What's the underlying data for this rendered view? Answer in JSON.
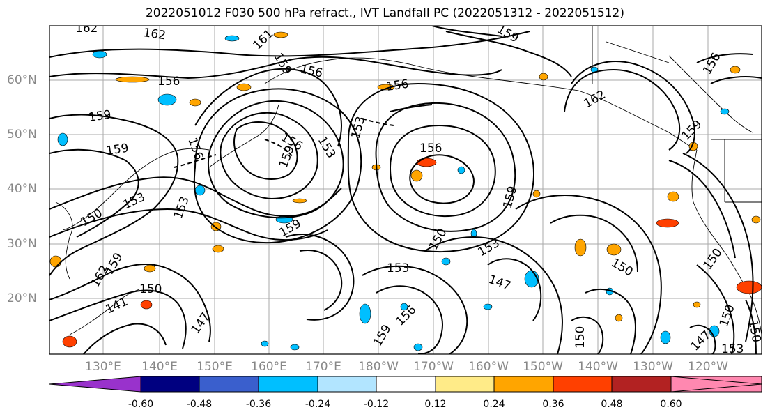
{
  "title": "2022051012 F030 500 hPa refract., IVT Landfall PC (2022051312 - 2022051512)",
  "map": {
    "lat_labels": [
      "60°N",
      "50°N",
      "40°N",
      "30°N",
      "20°N"
    ],
    "lon_labels": [
      "130°E",
      "140°E",
      "150°E",
      "160°E",
      "170°E",
      "180°W",
      "170°W",
      "160°W",
      "150°W",
      "140°W",
      "130°W",
      "120°W"
    ],
    "contour_labels": [
      "162",
      "162",
      "161",
      "159",
      "156",
      "156",
      "156",
      "159",
      "159",
      "159",
      "156",
      "153",
      "153",
      "156",
      "156",
      "159",
      "150",
      "153",
      "159",
      "153",
      "150",
      "153",
      "147",
      "150",
      "156",
      "159",
      "147",
      "162",
      "159",
      "159",
      "150",
      "150",
      "153",
      "150",
      "147",
      "153",
      "150",
      "159",
      "162",
      "150",
      "141",
      "156"
    ],
    "line_color": "#000000",
    "grid_color": "#aaaaaa"
  },
  "colorbar": {
    "colors": [
      "#9932cc",
      "#000080",
      "#3a5fcd",
      "#00bfff",
      "#b2e5ff",
      "#ffffff",
      "#ffeb88",
      "#ffa500",
      "#ff4000",
      "#b22222",
      "#ff88b0",
      "#ff88b0"
    ],
    "tick_labels": [
      "-0.60",
      "-0.48",
      "-0.36",
      "-0.24",
      "-0.12",
      "0.12",
      "0.24",
      "0.36",
      "0.48",
      "0.60"
    ]
  }
}
